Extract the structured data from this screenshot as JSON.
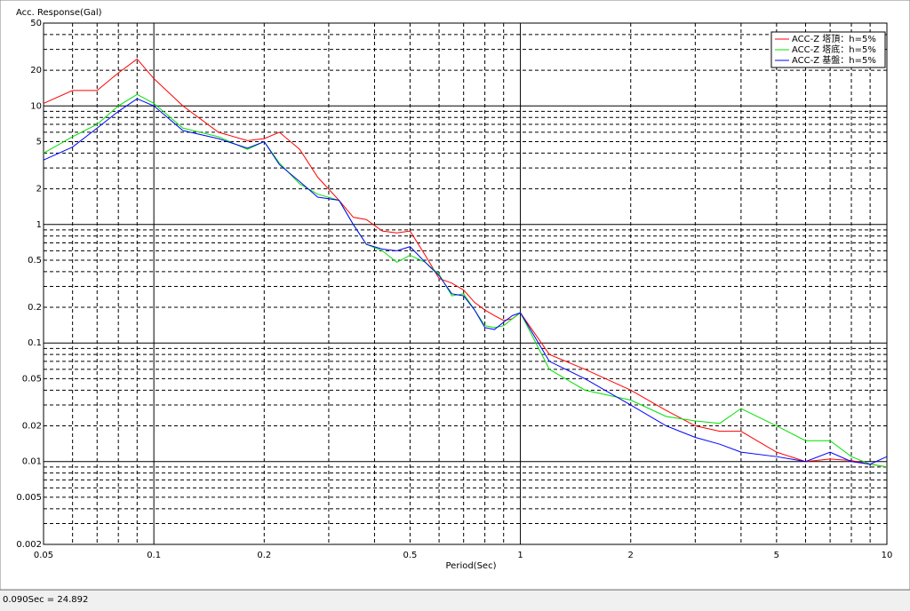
{
  "chart_data": {
    "type": "line",
    "title": "Acc. Response(Gal)",
    "x_label": "Period(Sec)",
    "log_x": true,
    "log_y": true,
    "grid": true,
    "legend": "top-right",
    "x": [
      0.05,
      0.06,
      0.07,
      0.08,
      0.09,
      0.1,
      0.12,
      0.15,
      0.18,
      0.2,
      0.22,
      0.25,
      0.28,
      0.32,
      0.35,
      0.38,
      0.42,
      0.46,
      0.5,
      0.55,
      0.6,
      0.65,
      0.7,
      0.75,
      0.8,
      0.85,
      0.9,
      0.95,
      1,
      1.2,
      1.5,
      2,
      2.5,
      3,
      3.5,
      4,
      5,
      6,
      7,
      8,
      9,
      10
    ],
    "series": [
      {
        "name": "ACC-Z 塔頂：h=5%",
        "color": "#ff0000",
        "values": [
          10.5,
          13.5,
          13.5,
          19,
          24.892,
          17,
          10,
          6,
          5.1,
          5.3,
          6,
          4.3,
          2.5,
          1.6,
          1.15,
          1.1,
          0.88,
          0.85,
          0.88,
          0.55,
          0.35,
          0.32,
          0.28,
          0.22,
          0.19,
          0.17,
          0.155,
          0.16,
          0.18,
          0.08,
          0.06,
          0.04,
          0.027,
          0.02,
          0.018,
          0.018,
          0.012,
          0.01,
          0.0105,
          0.0102,
          0.0095,
          0.009
        ]
      },
      {
        "name": "ACC-Z 塔底：h=5%",
        "color": "#00e000",
        "values": [
          4,
          5.5,
          7,
          10,
          12.5,
          10.5,
          6.5,
          5.5,
          4.3,
          5,
          3.3,
          2.2,
          1.8,
          1.6,
          1.0,
          0.68,
          0.6,
          0.48,
          0.55,
          0.48,
          0.38,
          0.25,
          0.26,
          0.19,
          0.14,
          0.135,
          0.14,
          0.16,
          0.18,
          0.06,
          0.04,
          0.033,
          0.024,
          0.022,
          0.021,
          0.028,
          0.02,
          0.015,
          0.015,
          0.011,
          0.0095,
          0.009
        ]
      },
      {
        "name": "ACC-Z 基盤：h=5%",
        "color": "#0000ff",
        "values": [
          3.5,
          4.5,
          6.5,
          9,
          11.5,
          10,
          6.2,
          5.3,
          4.4,
          5,
          3.2,
          2.3,
          1.7,
          1.6,
          1.0,
          0.68,
          0.62,
          0.6,
          0.65,
          0.48,
          0.37,
          0.26,
          0.25,
          0.19,
          0.135,
          0.13,
          0.15,
          0.17,
          0.18,
          0.07,
          0.05,
          0.03,
          0.02,
          0.016,
          0.014,
          0.012,
          0.011,
          0.01,
          0.012,
          0.01,
          0.0095,
          0.011
        ]
      }
    ],
    "xlim": [
      0.05,
      10
    ],
    "ylim": [
      0.002,
      50
    ],
    "xticks": [
      0.05,
      0.1,
      0.2,
      0.5,
      1,
      2,
      5,
      10
    ],
    "yticks": [
      50,
      20,
      10,
      5,
      2,
      1,
      0.5,
      0.2,
      0.1,
      0.05,
      0.02,
      0.01,
      0.005,
      0.002
    ],
    "xminorticks": [
      0.06,
      0.07,
      0.08,
      0.09,
      0.3,
      0.4,
      0.6,
      0.7,
      0.8,
      0.9,
      3,
      4,
      6,
      7,
      8,
      9
    ],
    "yminorticks": [
      40,
      30,
      9,
      8,
      7,
      6,
      4,
      3,
      0.9,
      0.8,
      0.7,
      0.6,
      0.4,
      0.3,
      0.09,
      0.08,
      0.07,
      0.06,
      0.04,
      0.03,
      0.009,
      0.008,
      0.007,
      0.006,
      0.004,
      0.003
    ],
    "status": "0.090Sec = 24.892"
  }
}
